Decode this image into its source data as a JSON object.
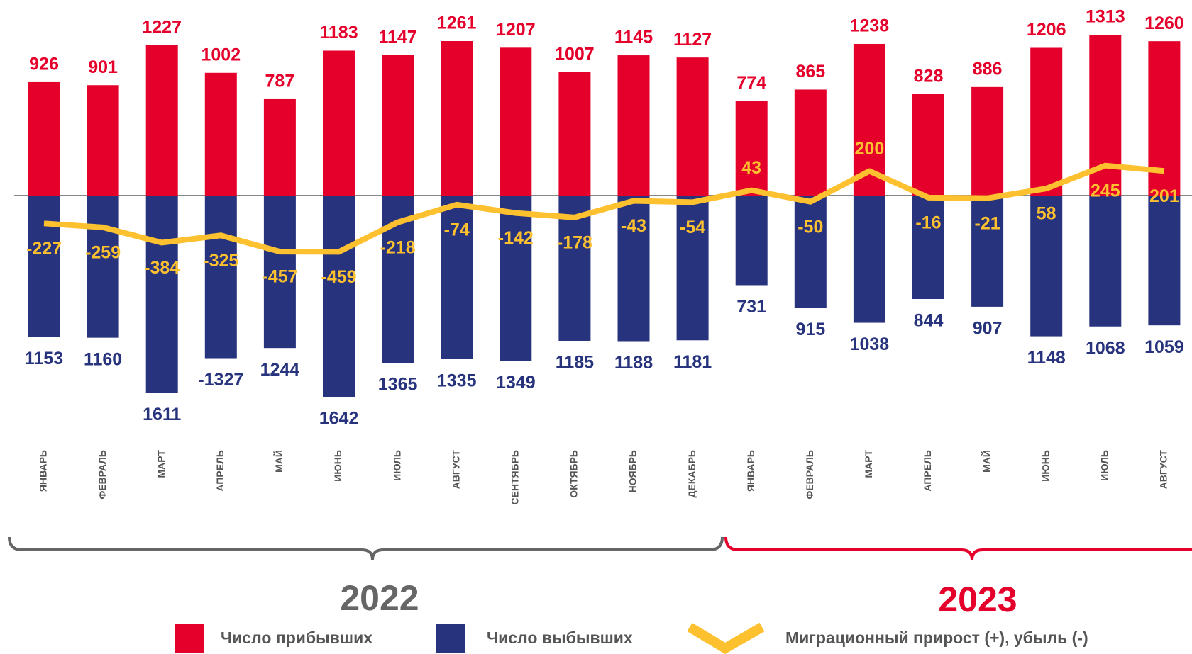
{
  "chart_data": {
    "type": "bar",
    "categories": [
      "ЯНВАРЬ",
      "ФЕВРАЛЬ",
      "МАРТ",
      "АПРЕЛЬ",
      "МАЙ",
      "ИЮНЬ",
      "ИЮЛЬ",
      "АВГУСТ",
      "СЕНТЯБРЬ",
      "ОКТЯБРЬ",
      "НОЯБРЬ",
      "ДЕКАБРЬ",
      "ЯНВАРЬ",
      "ФЕВРАЛЬ",
      "МАРТ",
      "АПРЕЛЬ",
      "МАЙ",
      "ИЮНЬ",
      "ИЮЛЬ",
      "АВГУСТ"
    ],
    "series": [
      {
        "name": "Число прибывших",
        "color": "#e4002b",
        "values": [
          926,
          901,
          1227,
          1002,
          787,
          1183,
          1147,
          1261,
          1207,
          1007,
          1145,
          1127,
          774,
          865,
          1238,
          828,
          886,
          1206,
          1313,
          1260
        ]
      },
      {
        "name": "Число выбывших",
        "color": "#27337d",
        "values": [
          -1153,
          -1160,
          -1611,
          -1327,
          -1244,
          -1642,
          -1365,
          -1335,
          -1349,
          -1185,
          -1188,
          -1181,
          -731,
          -915,
          -1038,
          -844,
          -907,
          -1148,
          -1068,
          -1059
        ],
        "value_labels": [
          "1153",
          "1160",
          "1611",
          "-1327",
          "1244",
          "1642",
          "1365",
          "1335",
          "1349",
          "1185",
          "1188",
          "1181",
          "731",
          "915",
          "1038",
          "844",
          "907",
          "1148",
          "1068",
          "1059"
        ]
      },
      {
        "name": "Миграционный прирост (+), убыль (-)",
        "color": "#fdc130",
        "type": "line",
        "values": [
          -227,
          -259,
          -384,
          -325,
          -457,
          -459,
          -218,
          -74,
          -142,
          -178,
          -43,
          -54,
          43,
          -50,
          200,
          -16,
          -21,
          58,
          245,
          201
        ]
      }
    ],
    "years": [
      "2022",
      "2023"
    ]
  }
}
